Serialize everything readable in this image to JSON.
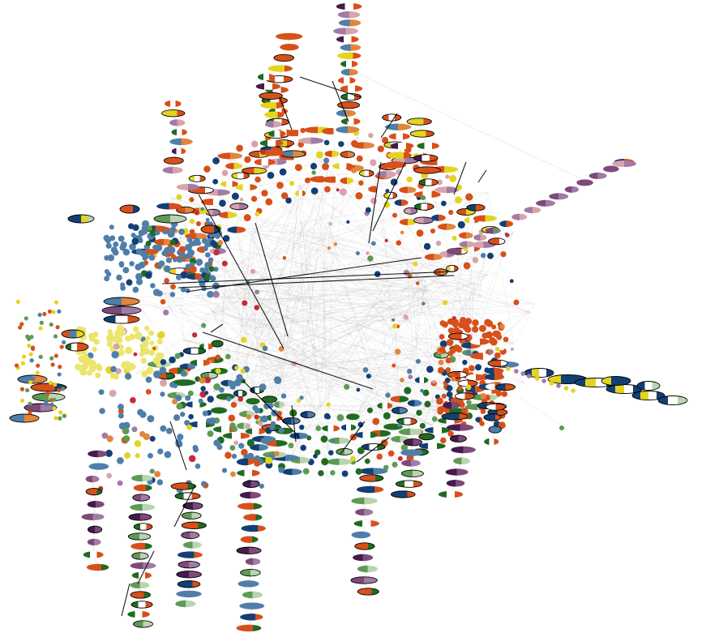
{
  "network": {
    "background": "#ffffff",
    "edge_color": "#9a9a9a",
    "highlight_edge_color": "#000000",
    "node_outline_color": "#000000",
    "long_tail_edge_color": "#cfcfcf",
    "palette": {
      "orange": "#d7501a",
      "dark_blue": "#123f75",
      "steel_blue": "#4f7ea9",
      "yellow": "#e3d420",
      "pale_yellow": "#ece56d",
      "green": "#206b21",
      "light_green": "#5e9a54",
      "dark_purple": "#451a4d",
      "purple": "#7d4a79",
      "light_purple": "#a27ba5",
      "pink": "#d9a3ad",
      "red": "#c92a3a",
      "light_orange": "#e1863b",
      "pale_green": "#b9d4b0",
      "white": "#ffffff"
    }
  }
}
